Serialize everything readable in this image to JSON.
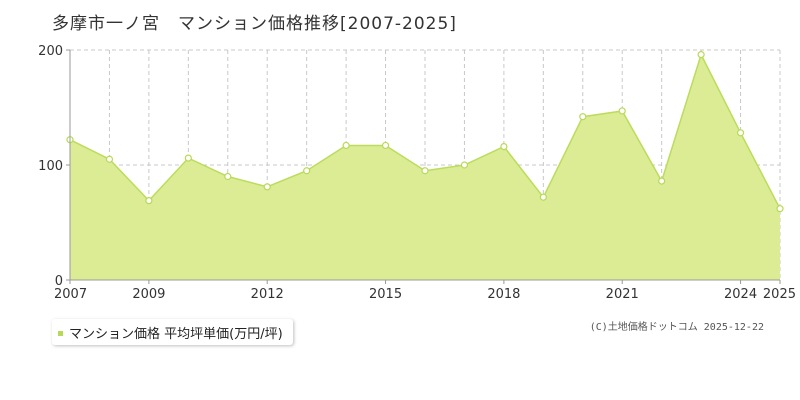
{
  "chart_data": {
    "type": "area",
    "title": "多摩市一ノ宮　マンション価格推移[2007-2025]",
    "x": [
      2007,
      2008,
      2009,
      2010,
      2011,
      2012,
      2013,
      2014,
      2015,
      2016,
      2017,
      2018,
      2019,
      2020,
      2021,
      2022,
      2023,
      2024,
      2025
    ],
    "x_tick_labels": [
      "2007",
      "2009",
      "2012",
      "2015",
      "2018",
      "2021",
      "2024",
      "2025"
    ],
    "y_tick_labels": [
      "0",
      "100",
      "200"
    ],
    "ylim": [
      0,
      200
    ],
    "series": [
      {
        "name": "マンション価格 平均坪単価(万円/坪)",
        "values": [
          122,
          105,
          69,
          106,
          90,
          81,
          95,
          117,
          117,
          95,
          100,
          116,
          72,
          142,
          147,
          86,
          196,
          128,
          62
        ]
      }
    ],
    "grid": true,
    "legend_position": "bottom-left",
    "colors": {
      "fill": "#dcec94",
      "line": "#bcdc5c",
      "marker": "#b8d957"
    }
  },
  "credit": "(C)土地価格ドットコム 2025-12-22"
}
